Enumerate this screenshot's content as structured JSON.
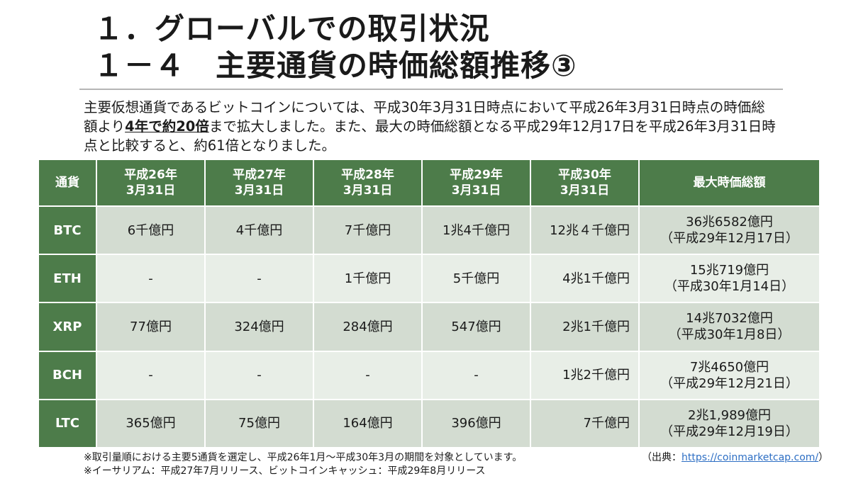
{
  "header": {
    "title_line1": "１．グローバルでの取引状況",
    "title_line2": "１－４　主要通貨の時価総額推移③"
  },
  "intro": {
    "part1": "主要仮想通貨であるビットコインについては、平成30年3月31日時点において平成26年3月31日時点の時価総額より",
    "highlight": "4年で約20倍",
    "part2": "まで拡大しました。また、最大の時価総額となる平成29年12月17日を平成26年3月31日時点と比較すると、約61倍となりました。"
  },
  "table": {
    "columns": [
      {
        "line1": "通貨",
        "line2": ""
      },
      {
        "line1": "平成26年",
        "line2": "3月31日"
      },
      {
        "line1": "平成27年",
        "line2": "3月31日"
      },
      {
        "line1": "平成28年",
        "line2": "3月31日"
      },
      {
        "line1": "平成29年",
        "line2": "3月31日"
      },
      {
        "line1": "平成30年",
        "line2": "3月31日"
      },
      {
        "line1": "最大時価総額",
        "line2": ""
      }
    ],
    "rows": [
      {
        "coin": "BTC",
        "cells": [
          "6千億円",
          "4千億円",
          "7千億円",
          "1兆4千億円",
          "12兆４千億円"
        ],
        "max_value": "36兆6582億円",
        "max_date": "（平成29年12月17日）"
      },
      {
        "coin": "ETH",
        "cells": [
          "-",
          "-",
          "1千億円",
          "5千億円",
          "4兆1千億円"
        ],
        "max_value": "15兆719億円",
        "max_date": "（平成30年1月14日）"
      },
      {
        "coin": "XRP",
        "cells": [
          "77億円",
          "324億円",
          "284億円",
          "547億円",
          "2兆1千億円"
        ],
        "max_value": "14兆7032億円",
        "max_date": "（平成30年1月8日）"
      },
      {
        "coin": "BCH",
        "cells": [
          "-",
          "-",
          "-",
          "-",
          "1兆2千億円"
        ],
        "max_value": "7兆4650億円",
        "max_date": "（平成29年12月21日）"
      },
      {
        "coin": "LTC",
        "cells": [
          "365億円",
          "75億円",
          "164億円",
          "396億円",
          "7千億円"
        ],
        "max_value": "2兆1,989億円",
        "max_date": "（平成29年12月19日）"
      }
    ]
  },
  "notes": [
    "※取引量順における主要5通貨を選定し、平成26年1月～平成30年3月の期間を対象としています。",
    "※イーサリアム：平成27年7月リリース、ビットコインキャッシュ：平成29年8月リリース"
  ],
  "source": {
    "prefix": "（出典：",
    "link": "https://coinmarketcap.com/",
    "suffix": "）"
  }
}
